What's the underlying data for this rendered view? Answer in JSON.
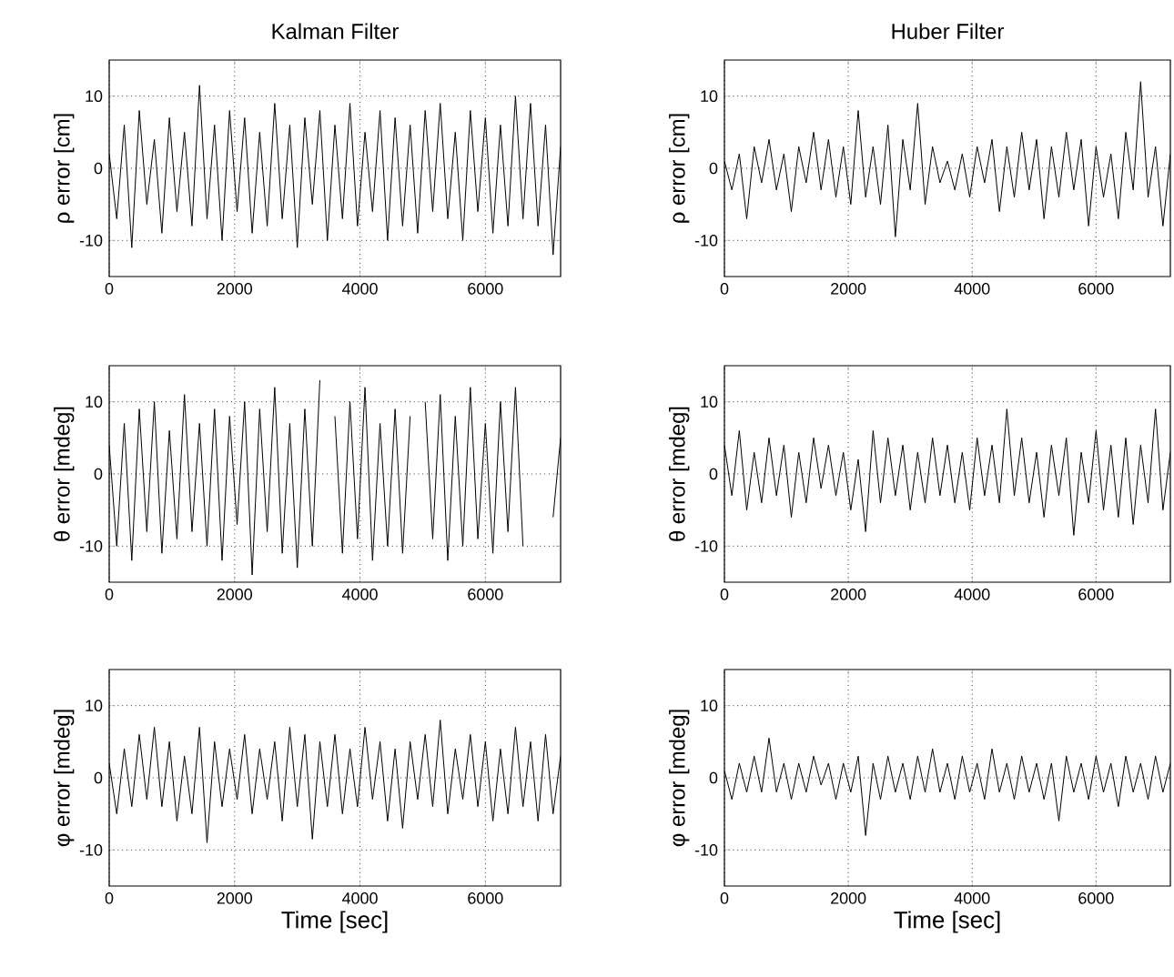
{
  "chart_data": [
    {
      "type": "line",
      "title": "Kalman Filter",
      "ylabel": "ρ error [cm]",
      "color": "#000000",
      "line_style": "solid",
      "grid": true,
      "xlim": [
        0,
        7200
      ],
      "ylim": [
        -15,
        15
      ],
      "xticks": [
        0,
        2000,
        4000,
        6000
      ],
      "yticks": [
        -10,
        0,
        10
      ],
      "x": [
        0,
        120,
        240,
        360,
        480,
        600,
        720,
        840,
        960,
        1080,
        1200,
        1320,
        1440,
        1560,
        1680,
        1800,
        1920,
        2040,
        2160,
        2280,
        2400,
        2520,
        2640,
        2760,
        2880,
        3000,
        3120,
        3240,
        3360,
        3480,
        3600,
        3720,
        3840,
        3960,
        4080,
        4200,
        4320,
        4440,
        4560,
        4680,
        4800,
        4920,
        5040,
        5160,
        5280,
        5400,
        5520,
        5640,
        5760,
        5880,
        6000,
        6120,
        6240,
        6360,
        6480,
        6600,
        6720,
        6840,
        6960,
        7080,
        7200
      ],
      "values": [
        2,
        -7,
        6,
        -11,
        8,
        -5,
        4,
        -9,
        7,
        -6,
        5,
        -8,
        11.5,
        -7,
        6,
        -10,
        8,
        -6,
        7,
        -9,
        5,
        -8,
        9,
        -7,
        6,
        -11,
        7,
        -5,
        8,
        -10,
        6,
        -7,
        9,
        -8,
        5,
        -6,
        8,
        -10,
        7,
        -8,
        6,
        -9,
        8,
        -6,
        9,
        -7,
        5,
        -10,
        8,
        -6,
        7,
        -9,
        6,
        -8,
        10,
        -7,
        9,
        -8,
        6,
        -12,
        3
      ]
    },
    {
      "type": "line",
      "title": "Huber Filter",
      "ylabel": "ρ error [cm]",
      "color": "#000000",
      "line_style": "solid",
      "grid": true,
      "xlim": [
        0,
        7200
      ],
      "ylim": [
        -15,
        15
      ],
      "xticks": [
        0,
        2000,
        4000,
        6000
      ],
      "yticks": [
        -10,
        0,
        10
      ],
      "x": [
        0,
        120,
        240,
        360,
        480,
        600,
        720,
        840,
        960,
        1080,
        1200,
        1320,
        1440,
        1560,
        1680,
        1800,
        1920,
        2040,
        2160,
        2280,
        2400,
        2520,
        2640,
        2760,
        2880,
        3000,
        3120,
        3240,
        3360,
        3480,
        3600,
        3720,
        3840,
        3960,
        4080,
        4200,
        4320,
        4440,
        4560,
        4680,
        4800,
        4920,
        5040,
        5160,
        5280,
        5400,
        5520,
        5640,
        5760,
        5880,
        6000,
        6120,
        6240,
        6360,
        6480,
        6600,
        6720,
        6840,
        6960,
        7080,
        7200
      ],
      "values": [
        1,
        -3,
        2,
        -7,
        3,
        -2,
        4,
        -3,
        2,
        -6,
        3,
        -2,
        5,
        -3,
        4,
        -4,
        3,
        -5,
        8,
        -4,
        3,
        -5,
        6,
        -9.5,
        4,
        -3,
        9,
        -5,
        3,
        -2,
        1,
        -3,
        2,
        -4,
        3,
        -2,
        4,
        -6,
        3,
        -4,
        5,
        -3,
        4,
        -7,
        3,
        -4,
        5,
        -3,
        4,
        -8,
        3,
        -4,
        2,
        -7,
        5,
        -3,
        12,
        -4,
        3,
        -8,
        2
      ]
    },
    {
      "type": "line",
      "ylabel": "θ error [mdeg]",
      "color": "#000000",
      "line_style": "solid",
      "grid": true,
      "xlim": [
        0,
        7200
      ],
      "ylim": [
        -15,
        15
      ],
      "xticks": [
        0,
        2000,
        4000,
        6000
      ],
      "yticks": [
        -10,
        0,
        10
      ],
      "x": [
        0,
        120,
        240,
        360,
        480,
        600,
        720,
        840,
        960,
        1080,
        1200,
        1320,
        1440,
        1560,
        1680,
        1800,
        1920,
        2040,
        2160,
        2280,
        2400,
        2520,
        2640,
        2760,
        2880,
        3000,
        3120,
        3240,
        3360,
        3480,
        3600,
        3720,
        3840,
        3960,
        4080,
        4200,
        4320,
        4440,
        4560,
        4680,
        4800,
        4920,
        5040,
        5160,
        5280,
        5400,
        5520,
        5640,
        5760,
        5880,
        6000,
        6120,
        6240,
        6360,
        6480,
        6600,
        6720,
        6840,
        6960,
        7080,
        7200
      ],
      "values": [
        4,
        -10,
        7,
        -12,
        9,
        -8,
        10,
        -11,
        6,
        -9,
        11,
        -8,
        7,
        -10,
        9,
        -12,
        8,
        -7,
        10,
        -14,
        9,
        -8,
        12,
        -11,
        7,
        -13,
        9,
        -10,
        13,
        null,
        8,
        -11,
        10,
        -9,
        12,
        -12,
        7,
        -10,
        9,
        -11,
        8,
        null,
        10,
        -9,
        11,
        -12,
        8,
        -10,
        12,
        -9,
        7,
        -11,
        10,
        -8,
        12,
        -10,
        null,
        null,
        null,
        -6,
        5
      ]
    },
    {
      "type": "line",
      "ylabel": "θ error [mdeg]",
      "color": "#000000",
      "line_style": "solid",
      "grid": true,
      "xlim": [
        0,
        7200
      ],
      "ylim": [
        -15,
        15
      ],
      "xticks": [
        0,
        2000,
        4000,
        6000
      ],
      "yticks": [
        -10,
        0,
        10
      ],
      "x": [
        0,
        120,
        240,
        360,
        480,
        600,
        720,
        840,
        960,
        1080,
        1200,
        1320,
        1440,
        1560,
        1680,
        1800,
        1920,
        2040,
        2160,
        2280,
        2400,
        2520,
        2640,
        2760,
        2880,
        3000,
        3120,
        3240,
        3360,
        3480,
        3600,
        3720,
        3840,
        3960,
        4080,
        4200,
        4320,
        4440,
        4560,
        4680,
        4800,
        4920,
        5040,
        5160,
        5280,
        5400,
        5520,
        5640,
        5760,
        5880,
        6000,
        6120,
        6240,
        6360,
        6480,
        6600,
        6720,
        6840,
        6960,
        7080,
        7200
      ],
      "values": [
        4,
        -3,
        6,
        -5,
        3,
        -4,
        5,
        -3,
        4,
        -6,
        3,
        -4,
        5,
        -2,
        4,
        -3,
        3,
        -5,
        2,
        -8,
        6,
        -4,
        5,
        -3,
        4,
        -5,
        3,
        -4,
        5,
        -3,
        4,
        -4,
        3,
        -5,
        5,
        -3,
        4,
        -4,
        9,
        -3,
        5,
        -4,
        3,
        -6,
        4,
        -3,
        5,
        -8.5,
        3,
        -4,
        6,
        -5,
        4,
        -6,
        5,
        -7,
        4,
        -4,
        9,
        -5,
        3
      ]
    },
    {
      "type": "line",
      "ylabel": "φ error [mdeg]",
      "xlabel": "Time [sec]",
      "color": "#000000",
      "line_style": "solid",
      "grid": true,
      "xlim": [
        0,
        7200
      ],
      "ylim": [
        -15,
        15
      ],
      "xticks": [
        0,
        2000,
        4000,
        6000
      ],
      "yticks": [
        -10,
        0,
        10
      ],
      "x": [
        0,
        120,
        240,
        360,
        480,
        600,
        720,
        840,
        960,
        1080,
        1200,
        1320,
        1440,
        1560,
        1680,
        1800,
        1920,
        2040,
        2160,
        2280,
        2400,
        2520,
        2640,
        2760,
        2880,
        3000,
        3120,
        3240,
        3360,
        3480,
        3600,
        3720,
        3840,
        3960,
        4080,
        4200,
        4320,
        4440,
        4560,
        4680,
        4800,
        4920,
        5040,
        5160,
        5280,
        5400,
        5520,
        5640,
        5760,
        5880,
        6000,
        6120,
        6240,
        6360,
        6480,
        6600,
        6720,
        6840,
        6960,
        7080,
        7200
      ],
      "values": [
        2,
        -5,
        4,
        -4,
        6,
        -3,
        7,
        -4,
        5,
        -6,
        3,
        -5,
        7,
        -9,
        5,
        -4,
        4,
        -3,
        6,
        -5,
        4,
        -3,
        5,
        -6,
        7,
        -4,
        6,
        -8.5,
        5,
        -4,
        6,
        -5,
        4,
        -4,
        7,
        -3,
        5,
        -6,
        4,
        -7,
        5,
        -3,
        6,
        -4,
        8,
        -5,
        4,
        -3,
        6,
        -4,
        5,
        -6,
        4,
        -5,
        7,
        -4,
        5,
        -6,
        6,
        -5,
        3
      ]
    },
    {
      "type": "line",
      "ylabel": "φ error [mdeg]",
      "xlabel": "Time [sec]",
      "color": "#000000",
      "line_style": "solid",
      "grid": true,
      "xlim": [
        0,
        7200
      ],
      "ylim": [
        -15,
        15
      ],
      "xticks": [
        0,
        2000,
        4000,
        6000
      ],
      "yticks": [
        -10,
        0,
        10
      ],
      "x": [
        0,
        120,
        240,
        360,
        480,
        600,
        720,
        840,
        960,
        1080,
        1200,
        1320,
        1440,
        1560,
        1680,
        1800,
        1920,
        2040,
        2160,
        2280,
        2400,
        2520,
        2640,
        2760,
        2880,
        3000,
        3120,
        3240,
        3360,
        3480,
        3600,
        3720,
        3840,
        3960,
        4080,
        4200,
        4320,
        4440,
        4560,
        4680,
        4800,
        4920,
        5040,
        5160,
        5280,
        5400,
        5520,
        5640,
        5760,
        5880,
        6000,
        6120,
        6240,
        6360,
        6480,
        6600,
        6720,
        6840,
        6960,
        7080,
        7200
      ],
      "values": [
        1,
        -3,
        2,
        -2,
        3,
        -2,
        5.5,
        -2,
        2,
        -3,
        2,
        -2,
        3,
        -1,
        2,
        -3,
        2,
        -2,
        3,
        -8,
        2,
        -3,
        3,
        -2,
        2,
        -3,
        3,
        -2,
        4,
        -2,
        2,
        -3,
        3,
        -2,
        2,
        -3,
        4,
        -2,
        2,
        -3,
        3,
        -2,
        2,
        -3,
        2,
        -6,
        3,
        -2,
        2,
        -3,
        3,
        -2,
        2,
        -4,
        3,
        -2,
        2,
        -3,
        3,
        -2,
        2
      ]
    }
  ]
}
